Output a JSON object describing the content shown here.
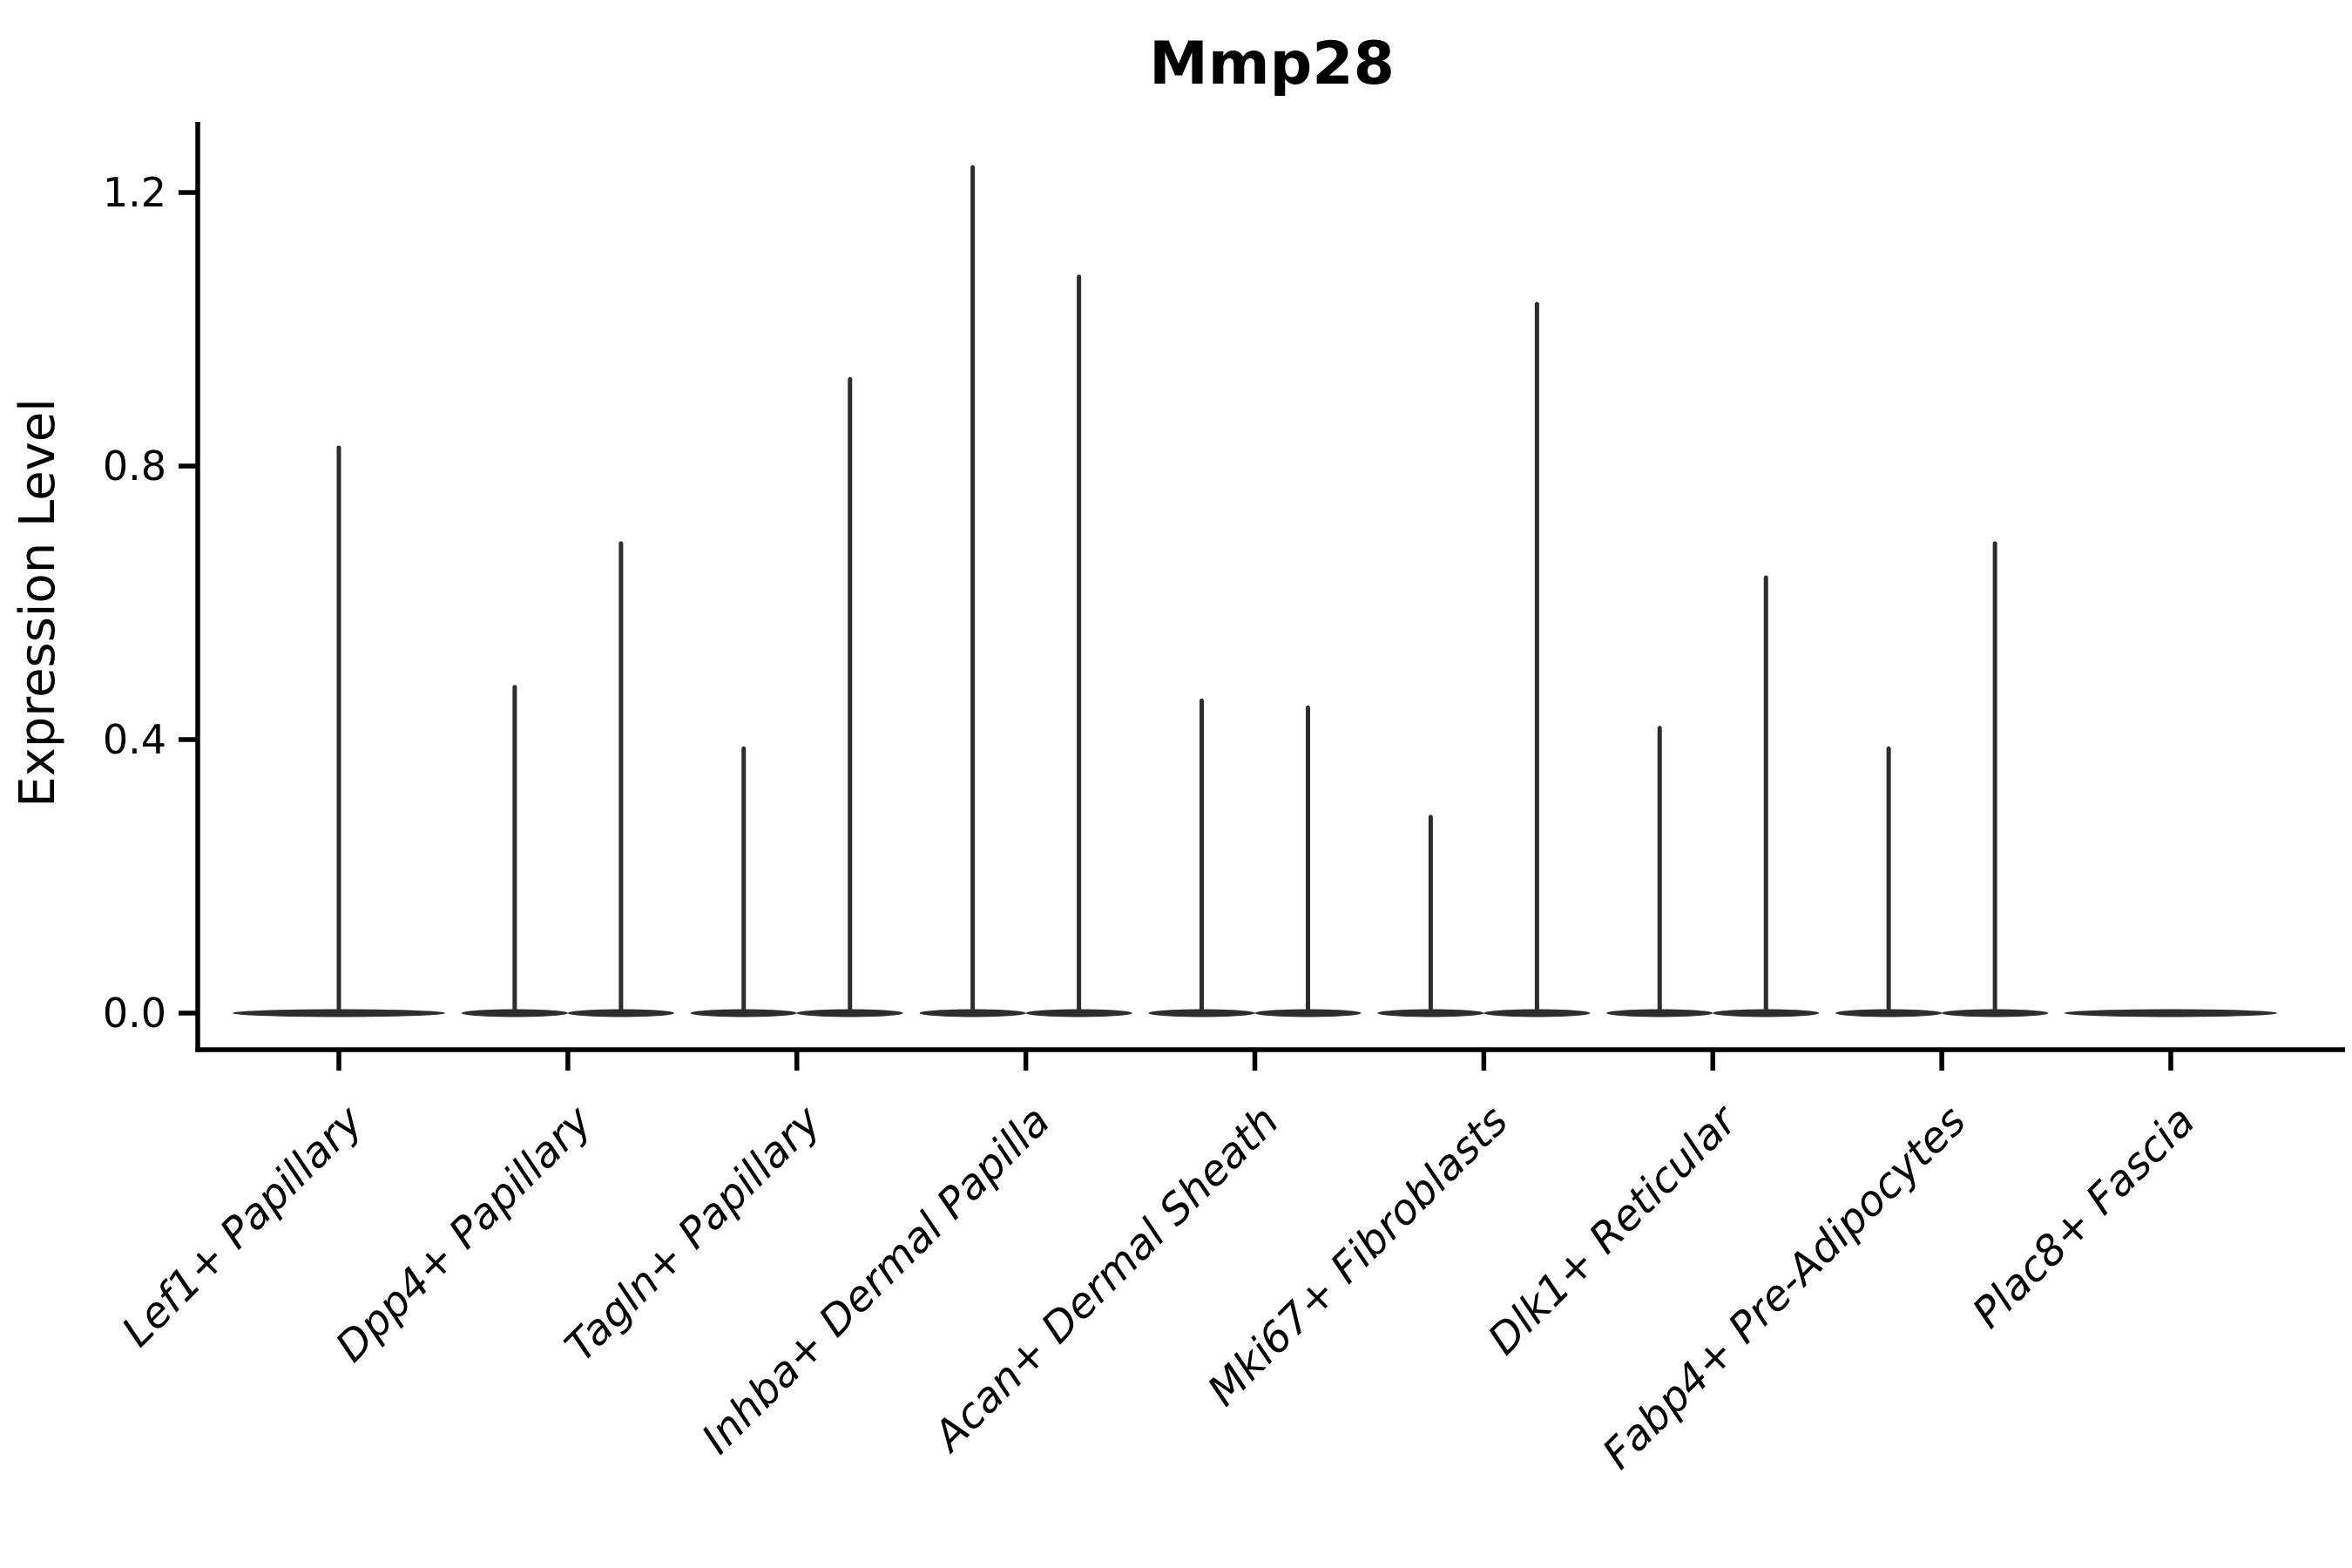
{
  "chart_data": {
    "type": "violin",
    "title": "Mmp28",
    "xlabel": "",
    "ylabel": "Expression Level",
    "ylim": [
      0,
      1.3
    ],
    "yticks": [
      0.0,
      0.4,
      0.8,
      1.2
    ],
    "ytick_labels": [
      "0.0",
      "0.4",
      "0.8",
      "1.2"
    ],
    "grid": false,
    "legend": "none",
    "categories": [
      "Lef1+ Papillary",
      "Dpp4+ Papillary",
      "Tagln+ Papillary",
      "Inhba+ Dermal Papilla",
      "Acan+ Dermal Sheath",
      "Mki67+ Fibroblasts",
      "Dlk1+ Reticular",
      "Fabp4+ Pre-Adipocytes",
      "Plac8+ Fascia"
    ],
    "series": [
      {
        "category": "Lef1+ Papillary",
        "violin_maxima": [
          0.83
        ]
      },
      {
        "category": "Dpp4+ Papillary",
        "violin_maxima": [
          0.48,
          0.69
        ]
      },
      {
        "category": "Tagln+ Papillary",
        "violin_maxima": [
          0.39,
          0.93
        ]
      },
      {
        "category": "Inhba+ Dermal Papilla",
        "violin_maxima": [
          1.24,
          1.08
        ]
      },
      {
        "category": "Acan+ Dermal Sheath",
        "violin_maxima": [
          0.46,
          0.45
        ]
      },
      {
        "category": "Mki67+ Fibroblasts",
        "violin_maxima": [
          0.29,
          1.04
        ]
      },
      {
        "category": "Dlk1+ Reticular",
        "violin_maxima": [
          0.42,
          0.64
        ]
      },
      {
        "category": "Fabp4+ Pre-Adipocytes",
        "violin_maxima": [
          0.39,
          0.69
        ]
      },
      {
        "category": "Plac8+ Fascia",
        "violin_maxima": []
      }
    ],
    "colors": {
      "violin_ink": "#2d2d2d",
      "axis": "#000000",
      "text": "#000000",
      "background": "#ffffff"
    }
  }
}
